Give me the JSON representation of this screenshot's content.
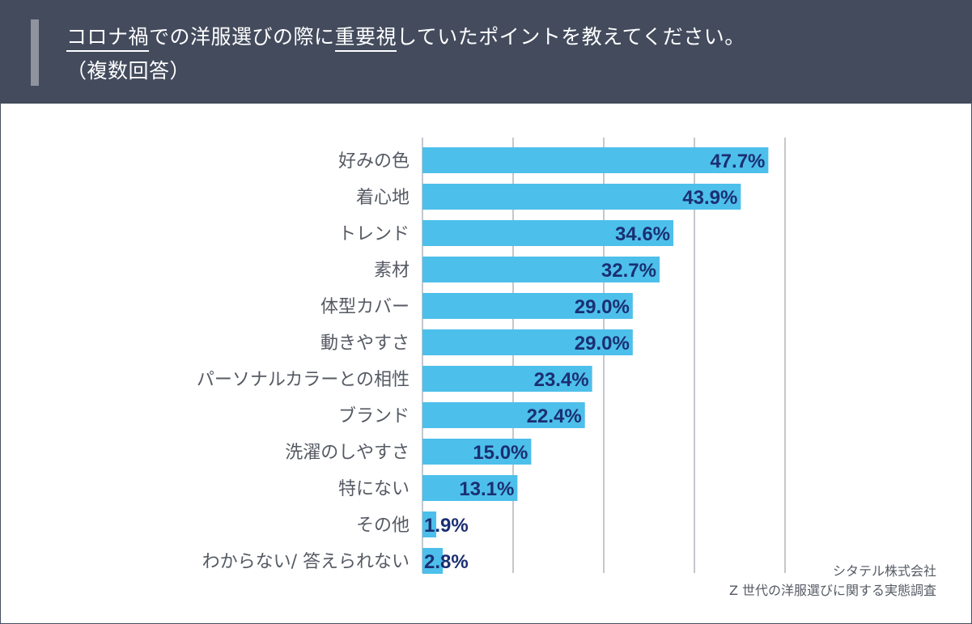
{
  "header": {
    "title_seg1": "コロナ禍",
    "title_seg2": "での洋服選びの際に",
    "title_seg3": "重要視",
    "title_seg4": "していたポイントを教えてください。",
    "subtitle": "（複数回答）"
  },
  "source": {
    "line1": "シタテル株式会社",
    "line2": "Z 世代の洋服選びに関する実態調査"
  },
  "colors": {
    "header_bg": "#434b5d",
    "bar": "#4dbfeb",
    "value_text": "#1a2f72",
    "label_text": "#555a63",
    "grid": "#8a8f98"
  },
  "chart_data": {
    "type": "bar",
    "orientation": "horizontal",
    "title": "コロナ禍での洋服選びの際に重要視していたポイントを教えてください。（複数回答）",
    "categories": [
      "好みの色",
      "着心地",
      "トレンド",
      "素材",
      "体型カバー",
      "動きやすさ",
      "パーソナルカラーとの相性",
      "ブランド",
      "洗濯のしやすさ",
      "特にない",
      "その他",
      "わからない/ 答えられない"
    ],
    "values": [
      47.7,
      43.9,
      34.6,
      32.7,
      29.0,
      29.0,
      23.4,
      22.4,
      15.0,
      13.1,
      1.9,
      2.8
    ],
    "value_labels": [
      "47.7%",
      "43.9%",
      "34.6%",
      "32.7%",
      "29.0%",
      "29.0%",
      "23.4%",
      "22.4%",
      "15.0%",
      "13.1%",
      "1.9%",
      "2.8%"
    ],
    "xlim": [
      0,
      50
    ],
    "grid_step": 12.5,
    "grid": true,
    "legend": "none",
    "xlabel": "",
    "ylabel": ""
  }
}
